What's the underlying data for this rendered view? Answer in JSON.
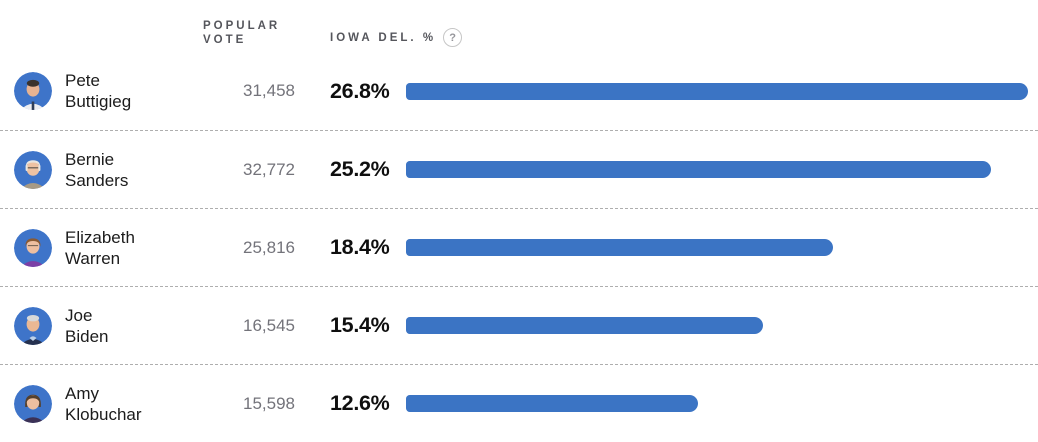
{
  "header": {
    "popular_vote_label": "POPULAR VOTE",
    "iowa_del_label": "IOWA DEL. %",
    "help_icon": "?"
  },
  "colors": {
    "bar_blue": "#3b74c4",
    "avatar_background_blue": "#3e74c9",
    "name_text": "#1c1c1c",
    "vote_text": "#73737a",
    "pct_text": "#0f0f0f",
    "header_text": "#55565c",
    "divider": "#aeaeae"
  },
  "rows": [
    {
      "first": "Pete",
      "last": "Buttigieg",
      "popular_vote": "31,458",
      "iowa_del_pct": "26.8%"
    },
    {
      "first": "Bernie",
      "last": "Sanders",
      "popular_vote": "32,772",
      "iowa_del_pct": "25.2%"
    },
    {
      "first": "Elizabeth",
      "last": "Warren",
      "popular_vote": "25,816",
      "iowa_del_pct": "18.4%"
    },
    {
      "first": "Joe",
      "last": "Biden",
      "popular_vote": "16,545",
      "iowa_del_pct": "15.4%"
    },
    {
      "first": "Amy",
      "last": "Klobuchar",
      "popular_vote": "15,598",
      "iowa_del_pct": "12.6%"
    }
  ],
  "chart_data": {
    "type": "bar",
    "orientation": "horizontal",
    "categories": [
      "Pete Buttigieg",
      "Bernie Sanders",
      "Elizabeth Warren",
      "Joe Biden",
      "Amy Klobuchar"
    ],
    "series": [
      {
        "name": "Popular vote",
        "values": [
          31458,
          32772,
          25816,
          16545,
          15598
        ]
      },
      {
        "name": "Iowa del. %",
        "values": [
          26.8,
          25.2,
          18.4,
          15.4,
          12.6
        ]
      }
    ],
    "bar_series": "Iowa del. %",
    "bar_color": "#3b74c4",
    "title": "",
    "xlabel": "",
    "ylabel": "",
    "layout": "bars scaled relative to maximum value (26.8%), grid off, no axis, dashed row dividers"
  }
}
